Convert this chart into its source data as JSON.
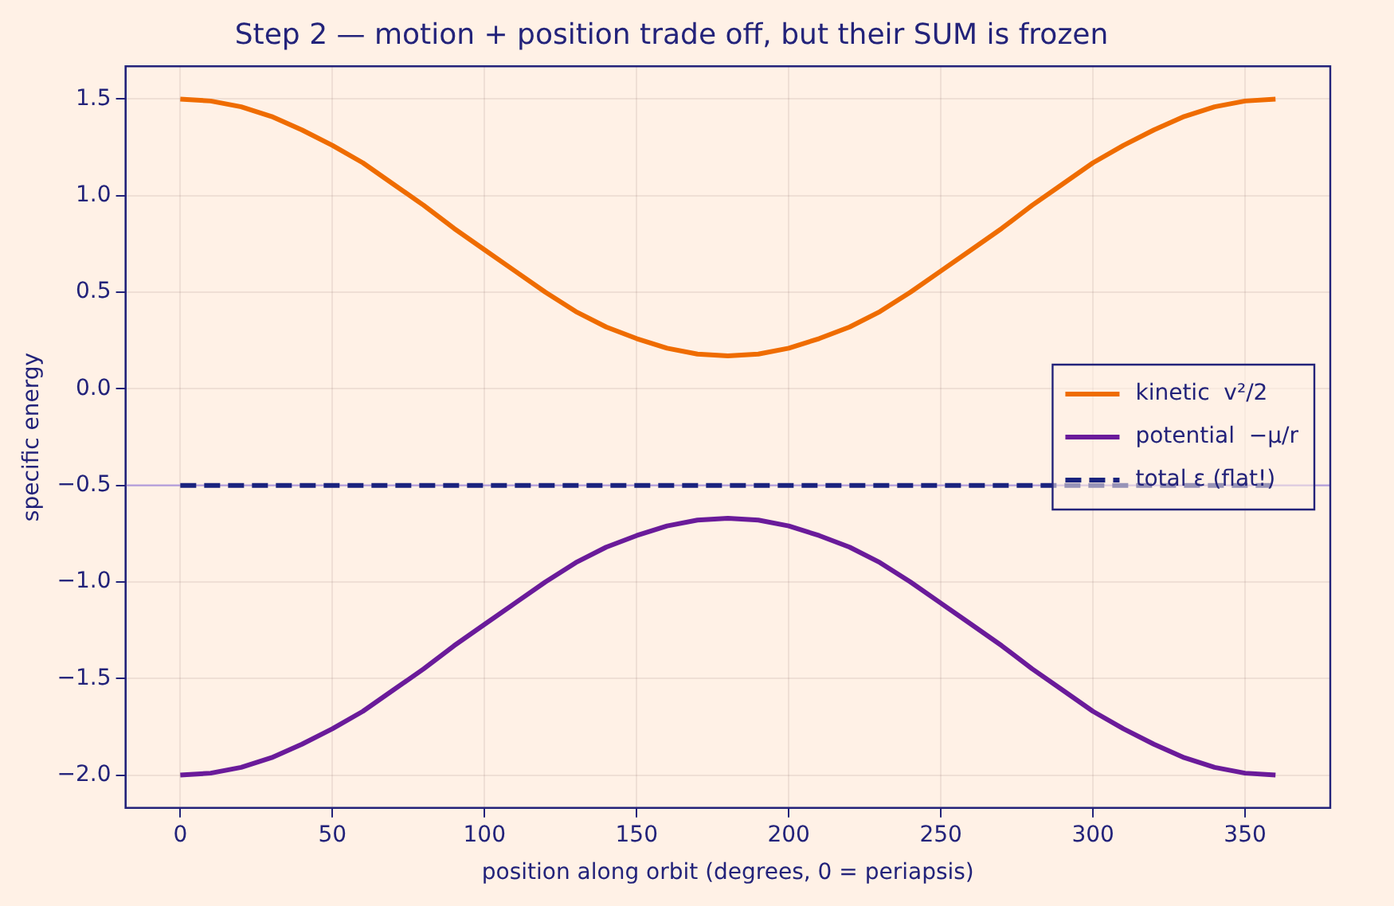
{
  "chart_data": {
    "type": "line",
    "title": "Step 2 — motion + position trade off, but their SUM is frozen",
    "xlabel": "position along orbit (degrees, 0 = periapsis)",
    "ylabel": "specific energy",
    "x": [
      0,
      10,
      20,
      30,
      40,
      50,
      60,
      70,
      80,
      90,
      100,
      110,
      120,
      130,
      140,
      150,
      160,
      170,
      180,
      190,
      200,
      210,
      220,
      230,
      240,
      250,
      260,
      270,
      280,
      290,
      300,
      310,
      320,
      330,
      340,
      350,
      360
    ],
    "series": [
      {
        "name": "kinetic  v²/2",
        "color": "#ef6c00",
        "values": [
          1.5,
          1.49,
          1.46,
          1.41,
          1.34,
          1.26,
          1.17,
          1.06,
          0.95,
          0.83,
          0.72,
          0.61,
          0.5,
          0.4,
          0.32,
          0.26,
          0.21,
          0.18,
          0.17,
          0.18,
          0.21,
          0.26,
          0.32,
          0.4,
          0.5,
          0.61,
          0.72,
          0.83,
          0.95,
          1.06,
          1.17,
          1.26,
          1.34,
          1.41,
          1.46,
          1.49,
          1.5
        ]
      },
      {
        "name": "potential  −μ/r",
        "color": "#6a1b9a",
        "values": [
          -2.0,
          -1.99,
          -1.96,
          -1.91,
          -1.84,
          -1.76,
          -1.67,
          -1.56,
          -1.45,
          -1.33,
          -1.22,
          -1.11,
          -1.0,
          -0.9,
          -0.82,
          -0.76,
          -0.71,
          -0.68,
          -0.67,
          -0.68,
          -0.71,
          -0.76,
          -0.82,
          -0.9,
          -1.0,
          -1.11,
          -1.22,
          -1.33,
          -1.45,
          -1.56,
          -1.67,
          -1.76,
          -1.84,
          -1.91,
          -1.96,
          -1.99,
          -2.0
        ]
      },
      {
        "name": "total ε (flat!)",
        "color": "#1a237e",
        "line_style": "dashed",
        "values": [
          -0.5,
          -0.5,
          -0.5,
          -0.5,
          -0.5,
          -0.5,
          -0.5,
          -0.5,
          -0.5,
          -0.5,
          -0.5,
          -0.5,
          -0.5,
          -0.5,
          -0.5,
          -0.5,
          -0.5,
          -0.5,
          -0.5,
          -0.5,
          -0.5,
          -0.5,
          -0.5,
          -0.5,
          -0.5,
          -0.5,
          -0.5,
          -0.5,
          -0.5,
          -0.5,
          -0.5,
          -0.5,
          -0.5,
          -0.5,
          -0.5,
          -0.5,
          -0.5
        ]
      }
    ],
    "ref_lines": [
      {
        "axis": "y",
        "value": -0.5,
        "color": "#b39ddb"
      }
    ],
    "xlim": [
      -18,
      378
    ],
    "xticks": [
      0,
      50,
      100,
      150,
      200,
      250,
      300,
      350
    ],
    "ylim": [
      -2.17,
      1.67
    ],
    "yticks": [
      {
        "value": -2,
        "label": "−2.0"
      },
      {
        "value": -1.5,
        "label": "−1.5"
      },
      {
        "value": -1,
        "label": "−1.0"
      },
      {
        "value": -0.5,
        "label": "−0.5"
      },
      {
        "value": 0,
        "label": "0.0"
      },
      {
        "value": 0.5,
        "label": "0.5"
      },
      {
        "value": 1,
        "label": "1.0"
      },
      {
        "value": 1.5,
        "label": "1.5"
      }
    ],
    "grid": true,
    "legend": "right",
    "marker": "none"
  }
}
